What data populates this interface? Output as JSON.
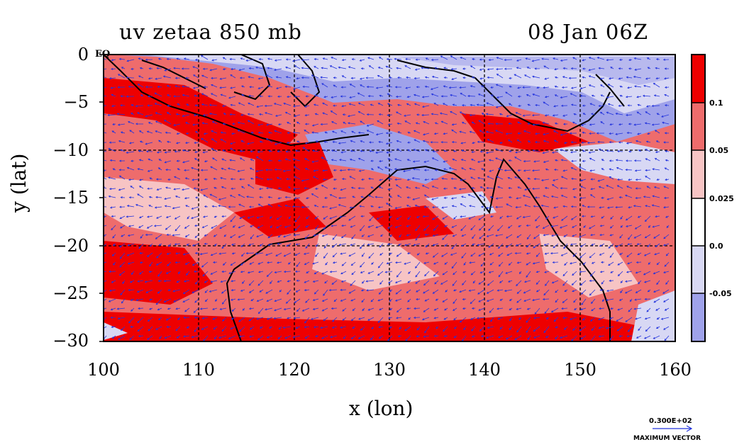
{
  "title_left": "uv zetaa 850 mb",
  "title_right": "08 Jan 06Z",
  "eq_label": "EQ",
  "xlabel": "x (lon)",
  "ylabel": "y (lat)",
  "xticks": [
    "100",
    "110",
    "120",
    "130",
    "140",
    "150",
    "160"
  ],
  "yticks": [
    "0",
    "−5",
    "−10",
    "−15",
    "−20",
    "−25",
    "−30"
  ],
  "colorbar": {
    "labels": [
      "0.1",
      "0.05",
      "0.025",
      "0.0",
      "-0.05"
    ],
    "colors": [
      "#ee0000",
      "#ee6c6c",
      "#f7c4c4",
      "#ffffff",
      "#d8d8f4",
      "#9fa2ea"
    ]
  },
  "vector": {
    "value": "0.300E+02",
    "caption": "MAXIMUM VECTOR",
    "color": "#2233dd"
  },
  "colors": {
    "coastline": "#000000",
    "grid": "#000000",
    "frame": "#000000"
  }
}
